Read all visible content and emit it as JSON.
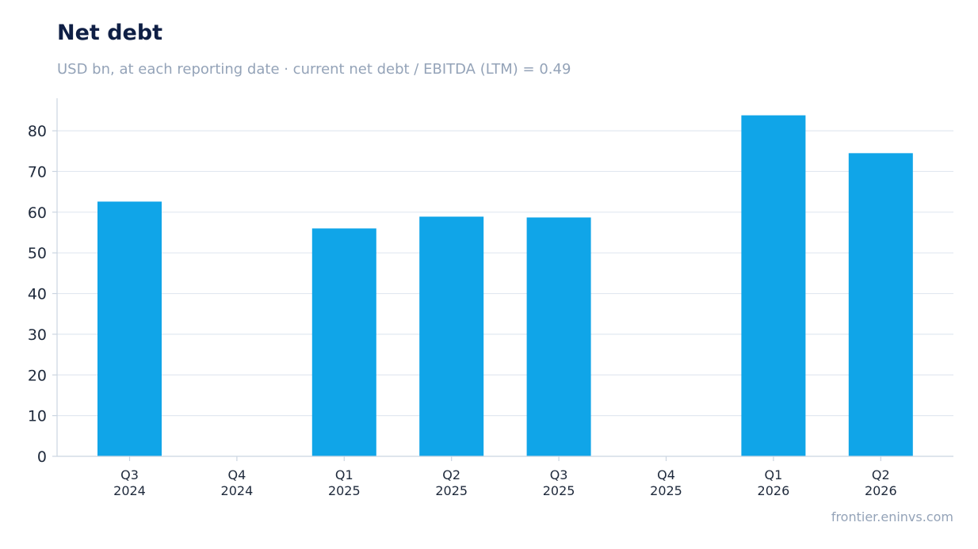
{
  "header": {
    "title": "Net debt",
    "subtitle": "USD bn, at each reporting date · current net debt / EBITDA (LTM) = 0.49"
  },
  "footer": {
    "source": "frontier.eninvs.com"
  },
  "colors": {
    "bar": "#10a5e8",
    "grid": "#e2e8f0",
    "axis": "#cbd5e1",
    "text": "#1e293b"
  },
  "chart_data": {
    "type": "bar",
    "categories": [
      [
        "Q3",
        "2024"
      ],
      [
        "Q4",
        "2024"
      ],
      [
        "Q1",
        "2025"
      ],
      [
        "Q2",
        "2025"
      ],
      [
        "Q3",
        "2025"
      ],
      [
        "Q4",
        "2025"
      ],
      [
        "Q1",
        "2026"
      ],
      [
        "Q2",
        "2026"
      ]
    ],
    "values": [
      62.6,
      null,
      56.0,
      58.9,
      58.7,
      null,
      83.8,
      74.5
    ],
    "yticks": [
      0,
      10,
      20,
      30,
      40,
      50,
      60,
      70,
      80
    ],
    "ylim": [
      0,
      88
    ],
    "grid": true,
    "legend": "none"
  }
}
